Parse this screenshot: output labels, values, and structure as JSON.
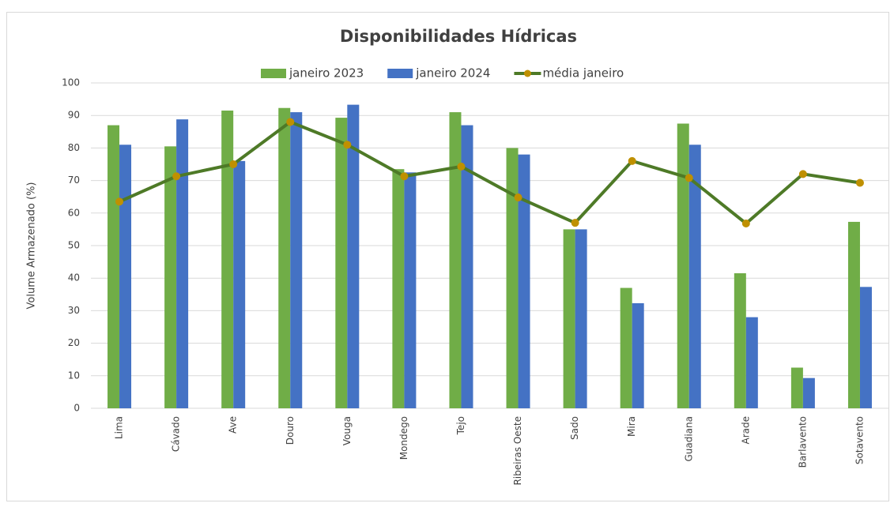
{
  "chart_data": {
    "type": "bar",
    "title": "Disponibilidades Hídricas",
    "y_label": "Volume Armazenado (%)",
    "categories": [
      "Lima",
      "Cávado",
      "Ave",
      "Douro",
      "Vouga",
      "Mondego",
      "Tejo",
      "Ribeiras Oeste",
      "Sado",
      "Mira",
      "Guadiana",
      "Arade",
      "Barlavento",
      "Sotavento"
    ],
    "series": [
      {
        "name": "janeiro 2023",
        "type": "bar",
        "color": "#70ad47",
        "values": [
          87,
          80.5,
          91.5,
          92.3,
          89.3,
          73.5,
          91,
          80,
          55,
          37,
          87.5,
          41.5,
          12.5,
          57.3
        ]
      },
      {
        "name": "janeiro 2024",
        "type": "bar",
        "color": "#4472c4",
        "values": [
          81,
          88.8,
          76,
          91,
          93.3,
          72.5,
          87,
          78,
          55,
          32.3,
          81,
          28,
          9.3,
          37.3
        ]
      },
      {
        "name": "média janeiro",
        "type": "line",
        "color": "#4e7a27",
        "marker_color": "#bf9000",
        "values": [
          63.5,
          71.3,
          75,
          88,
          81,
          71.3,
          74.3,
          64.8,
          57,
          76,
          70.8,
          56.8,
          72,
          69.3
        ]
      }
    ],
    "ylim": [
      0,
      100
    ],
    "yticks": [
      0,
      10,
      20,
      30,
      40,
      50,
      60,
      70,
      80,
      90,
      100
    ],
    "grid": true
  }
}
